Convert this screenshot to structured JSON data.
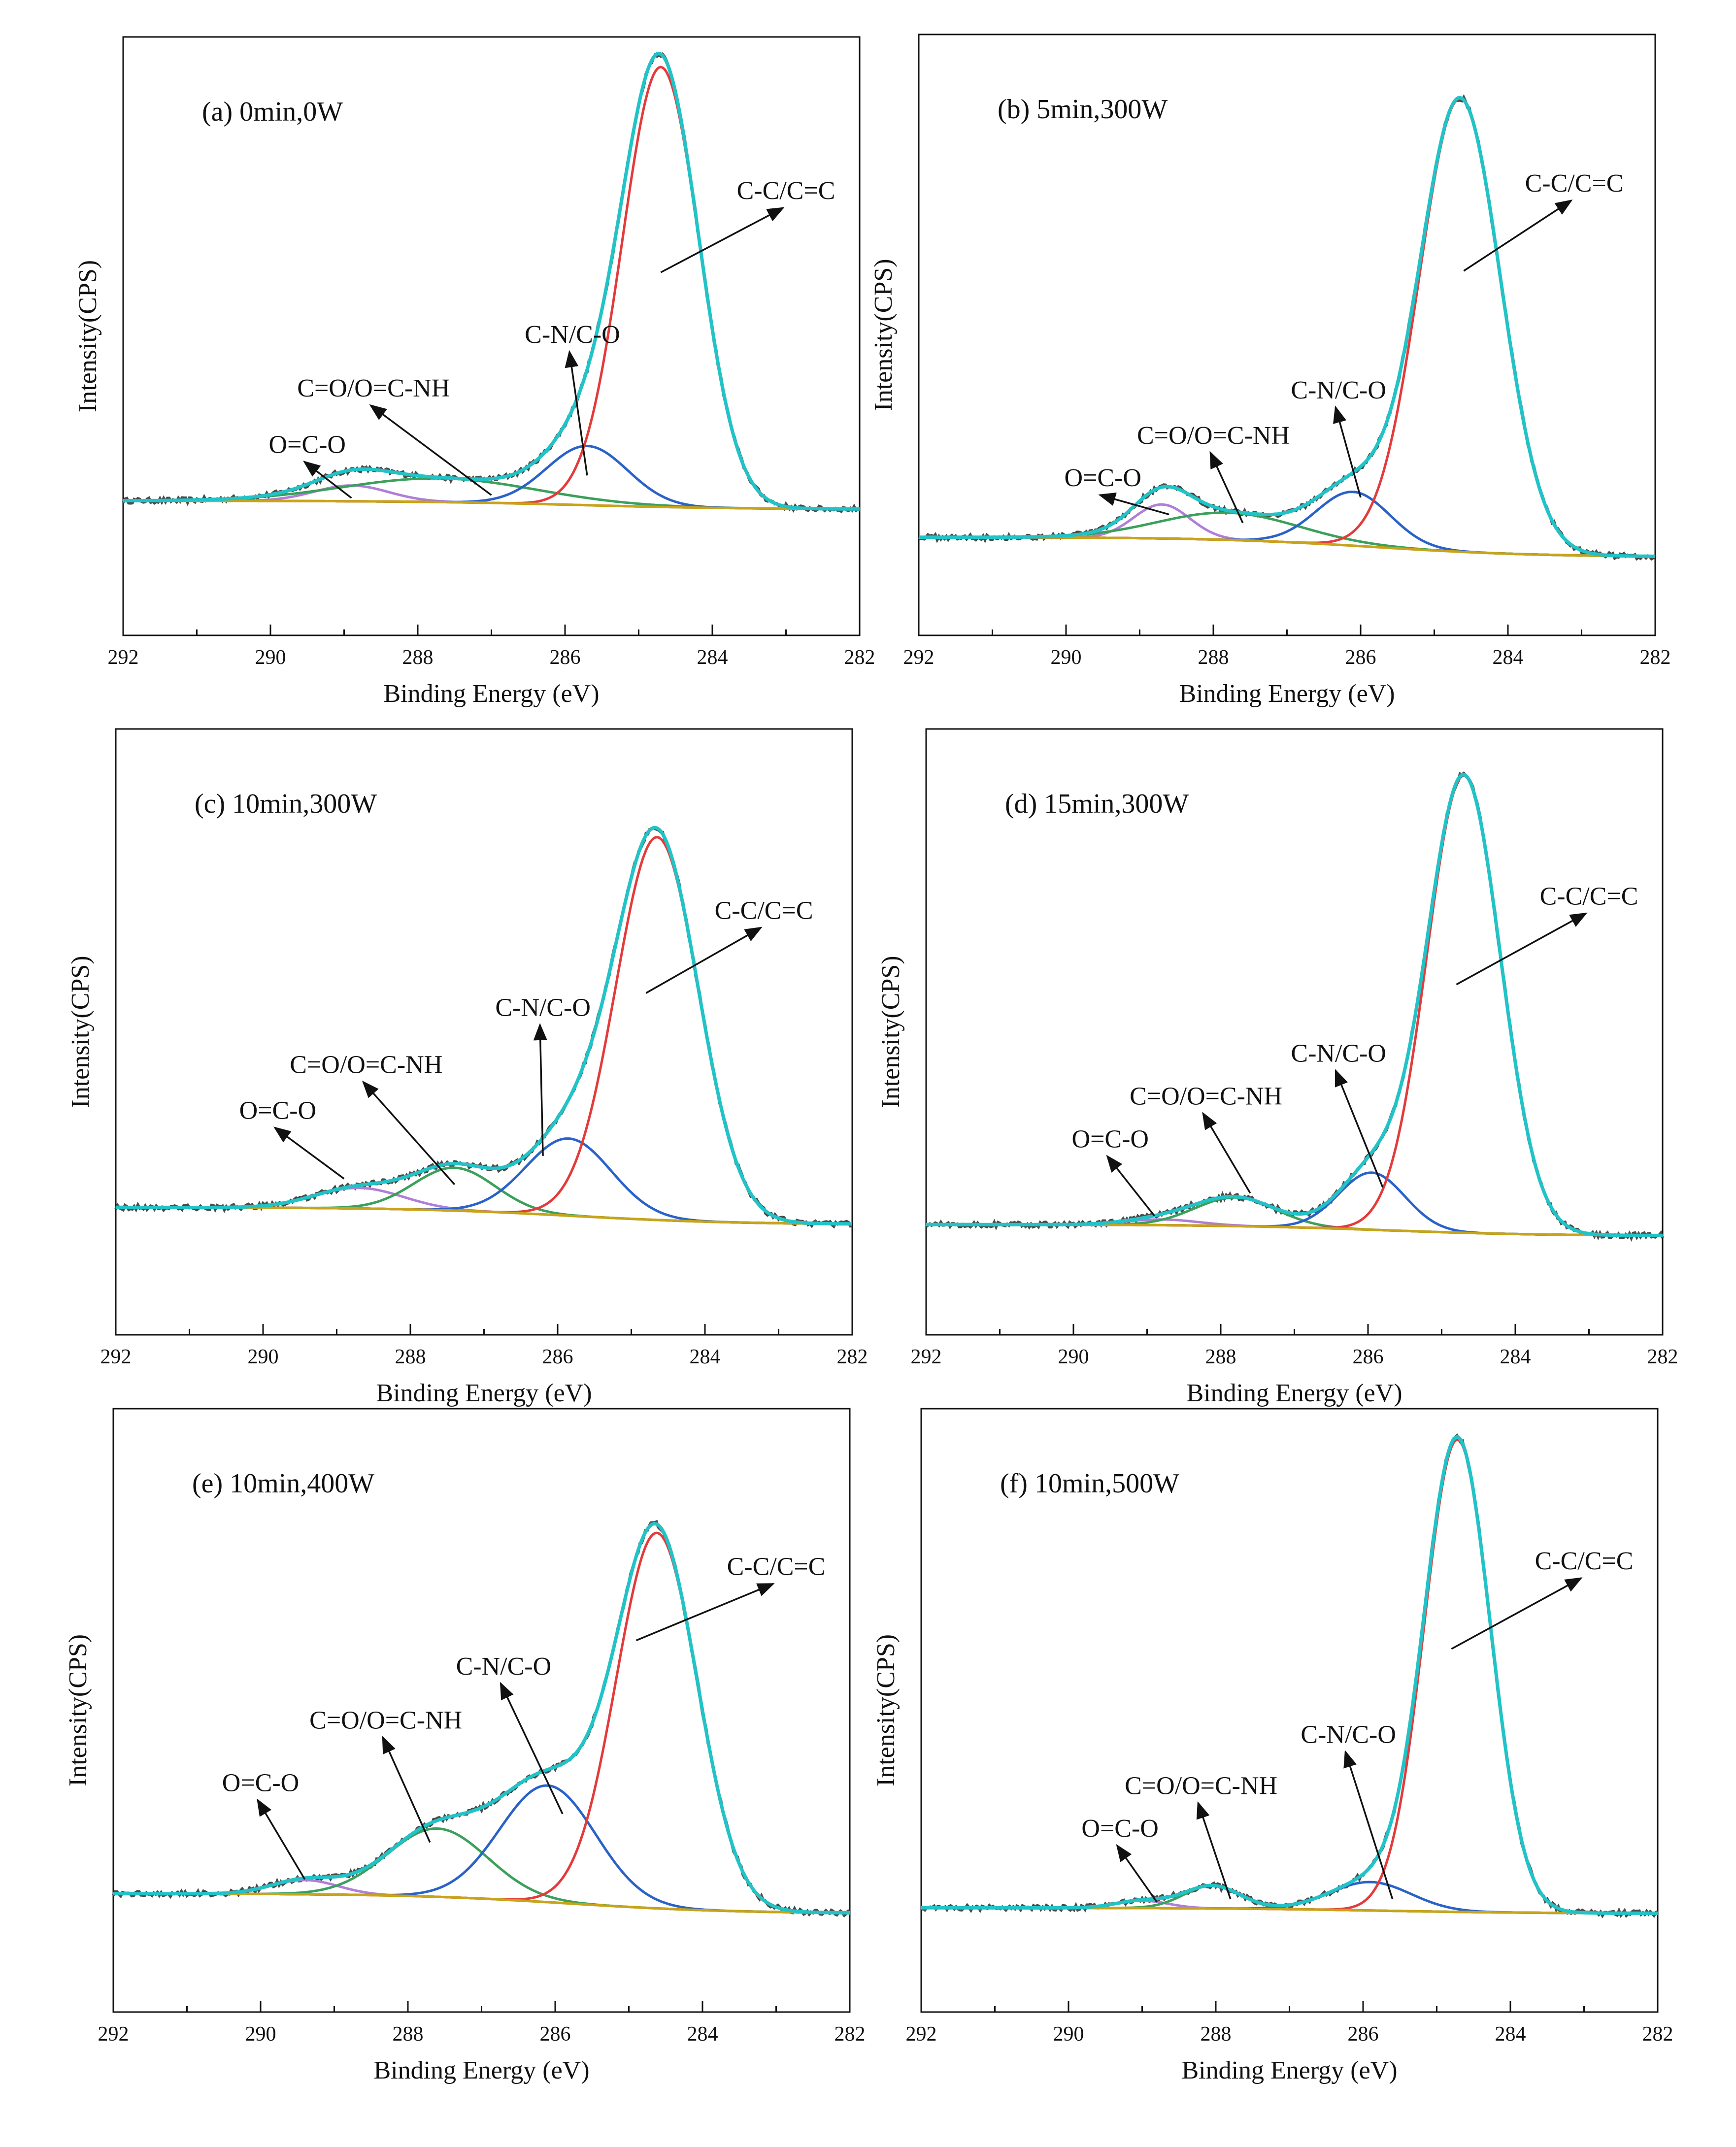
{
  "colors": {
    "raw": "#4a4a4a",
    "envelope": "#22c3c7",
    "cc": "#e33b3b",
    "cn": "#2a62c9",
    "co": "#3aa05a",
    "oco": "#b07ed8",
    "background": "#c8a416"
  },
  "chart_data": [
    {
      "type": "line",
      "title": "(a) 0min,0W",
      "xlabel": "Binding Energy (eV)",
      "ylabel": "Intensity(CPS)",
      "xlim": [
        292,
        282
      ],
      "ylim": [
        0,
        100
      ],
      "xticks": [
        "292",
        "290",
        "288",
        "286",
        "284",
        "282"
      ],
      "baseline": {
        "left": 19.5,
        "right": 18.0
      },
      "series": [
        {
          "name": "C-C/C=C",
          "key": "cc",
          "center": 284.7,
          "amp": 78,
          "width": 0.52
        },
        {
          "name": "C-N/C-O",
          "key": "cn",
          "center": 285.7,
          "amp": 10.5,
          "width": 0.55
        },
        {
          "name": "C=O/O=C-NH",
          "key": "co",
          "center": 287.7,
          "amp": 4.2,
          "width": 1.3
        },
        {
          "name": "O=C-O",
          "key": "oco",
          "center": 288.9,
          "amp": 2.8,
          "width": 0.5
        }
      ],
      "annotations": [
        {
          "text": "C-C/C=C",
          "tx": 283.0,
          "ty": 73,
          "ax": 284.7,
          "ay": 60
        },
        {
          "text": "C-N/C-O",
          "tx": 285.9,
          "ty": 47.5,
          "ax": 285.7,
          "ay": 24
        },
        {
          "text": "C=O/O=C-NH",
          "tx": 288.6,
          "ty": 38,
          "ax": 287.0,
          "ay": 20.5
        },
        {
          "text": "O=C-O",
          "tx": 289.5,
          "ty": 28,
          "ax": 288.9,
          "ay": 20
        }
      ]
    },
    {
      "type": "line",
      "title": "(b) 5min,300W",
      "xlabel": "Binding Energy (eV)",
      "ylabel": "Intensity(CPS)",
      "xlim": [
        292,
        282
      ],
      "ylim": [
        0,
        100
      ],
      "xticks": [
        "292",
        "290",
        "288",
        "286",
        "284",
        "282"
      ],
      "baseline": {
        "left": 13.0,
        "right": 9.5
      },
      "series": [
        {
          "name": "C-C/C=C",
          "key": "cc",
          "center": 284.65,
          "amp": 80,
          "width": 0.55
        },
        {
          "name": "C-N/C-O",
          "key": "cn",
          "center": 286.1,
          "amp": 9.5,
          "width": 0.5
        },
        {
          "name": "C=O/O=C-NH",
          "key": "co",
          "center": 287.8,
          "amp": 4.8,
          "width": 0.95
        },
        {
          "name": "O=C-O",
          "key": "oco",
          "center": 288.7,
          "amp": 6.0,
          "width": 0.38
        }
      ],
      "annotations": [
        {
          "text": "C-C/C=C",
          "tx": 283.1,
          "ty": 74,
          "ax": 284.6,
          "ay": 60
        },
        {
          "text": "C-N/C-O",
          "tx": 286.3,
          "ty": 37.5,
          "ax": 286.0,
          "ay": 20
        },
        {
          "text": "C=O/O=C-NH",
          "tx": 288.0,
          "ty": 29.5,
          "ax": 287.6,
          "ay": 15.5
        },
        {
          "text": "O=C-O",
          "tx": 289.5,
          "ty": 22,
          "ax": 288.6,
          "ay": 17
        }
      ]
    },
    {
      "type": "line",
      "title": "(c) 10min,300W",
      "xlabel": "Binding Energy (eV)",
      "ylabel": "Intensity(CPS)",
      "xlim": [
        292,
        282
      ],
      "ylim": [
        0,
        100
      ],
      "xticks": [
        "292",
        "290",
        "288",
        "286",
        "284",
        "282"
      ],
      "baseline": {
        "left": 18.0,
        "right": 15.0
      },
      "series": [
        {
          "name": "C-C/C=C",
          "key": "cc",
          "center": 284.65,
          "amp": 67,
          "width": 0.56
        },
        {
          "name": "C-N/C-O",
          "key": "cn",
          "center": 285.85,
          "amp": 13.5,
          "width": 0.58
        },
        {
          "name": "C=O/O=C-NH",
          "key": "co",
          "center": 287.4,
          "amp": 7.5,
          "width": 0.55
        },
        {
          "name": "O=C-O",
          "key": "oco",
          "center": 288.7,
          "amp": 3.6,
          "width": 0.6
        }
      ],
      "annotations": [
        {
          "text": "C-C/C=C",
          "tx": 283.2,
          "ty": 68.5,
          "ax": 284.8,
          "ay": 55.5
        },
        {
          "text": "C-N/C-O",
          "tx": 286.2,
          "ty": 51.5,
          "ax": 286.2,
          "ay": 27
        },
        {
          "text": "C=O/O=C-NH",
          "tx": 288.6,
          "ty": 41.5,
          "ax": 287.4,
          "ay": 22
        },
        {
          "text": "O=C-O",
          "tx": 289.8,
          "ty": 33.5,
          "ax": 288.9,
          "ay": 23
        }
      ]
    },
    {
      "type": "line",
      "title": "(d) 15min,300W",
      "xlabel": "Binding Energy (eV)",
      "ylabel": "Intensity(CPS)",
      "xlim": [
        292,
        282
      ],
      "ylim": [
        0,
        100
      ],
      "xticks": [
        "292",
        "290",
        "288",
        "286",
        "284",
        "282"
      ],
      "baseline": {
        "left": 15.0,
        "right": 13.0
      },
      "series": [
        {
          "name": "C-C/C=C",
          "key": "cc",
          "center": 284.7,
          "amp": 80,
          "width": 0.5
        },
        {
          "name": "C-N/C-O",
          "key": "cn",
          "center": 285.95,
          "amp": 10.0,
          "width": 0.45
        },
        {
          "name": "C=O/O=C-NH",
          "key": "co",
          "center": 287.8,
          "amp": 5.0,
          "width": 0.55
        },
        {
          "name": "O=C-O",
          "key": "oco",
          "center": 288.8,
          "amp": 1.0,
          "width": 0.5
        }
      ],
      "annotations": [
        {
          "text": "C-C/C=C",
          "tx": 283.0,
          "ty": 71,
          "ax": 284.8,
          "ay": 57
        },
        {
          "text": "C-N/C-O",
          "tx": 286.4,
          "ty": 43.5,
          "ax": 285.8,
          "ay": 21.5
        },
        {
          "text": "C=O/O=C-NH",
          "tx": 288.2,
          "ty": 36,
          "ax": 287.6,
          "ay": 20.5
        },
        {
          "text": "O=C-O",
          "tx": 289.5,
          "ty": 28.5,
          "ax": 288.9,
          "ay": 16.5
        }
      ]
    },
    {
      "type": "line",
      "title": "(e) 10min,400W",
      "xlabel": "Binding Energy (eV)",
      "ylabel": "Intensity(CPS)",
      "xlim": [
        292,
        282
      ],
      "ylim": [
        0,
        100
      ],
      "xticks": [
        "292",
        "290",
        "288",
        "286",
        "284",
        "282"
      ],
      "baseline": {
        "left": 16.5,
        "right": 13.0
      },
      "series": [
        {
          "name": "C-C/C=C",
          "key": "cc",
          "center": 284.62,
          "amp": 66,
          "width": 0.55
        },
        {
          "name": "C-N/C-O",
          "key": "cn",
          "center": 286.1,
          "amp": 20.5,
          "width": 0.65
        },
        {
          "name": "C=O/O=C-NH",
          "key": "co",
          "center": 287.6,
          "amp": 12.0,
          "width": 0.68
        },
        {
          "name": "O=C-O",
          "key": "oco",
          "center": 289.4,
          "amp": 2.5,
          "width": 0.45
        }
      ],
      "annotations": [
        {
          "text": "C-C/C=C",
          "tx": 283.0,
          "ty": 72.5,
          "ax": 284.9,
          "ay": 61
        },
        {
          "text": "C-N/C-O",
          "tx": 286.7,
          "ty": 55,
          "ax": 285.9,
          "ay": 30.5
        },
        {
          "text": "C=O/O=C-NH",
          "tx": 288.3,
          "ty": 45.5,
          "ax": 287.7,
          "ay": 25.5
        },
        {
          "text": "O=C-O",
          "tx": 290.0,
          "ty": 34.5,
          "ax": 289.4,
          "ay": 19
        }
      ]
    },
    {
      "type": "line",
      "title": "(f) 10min,500W",
      "xlabel": "Binding Energy (eV)",
      "ylabel": "Intensity(CPS)",
      "xlim": [
        292,
        282
      ],
      "ylim": [
        0,
        100
      ],
      "xticks": [
        "292",
        "290",
        "288",
        "286",
        "284",
        "282"
      ],
      "baseline": {
        "left": 14.0,
        "right": 13.0
      },
      "series": [
        {
          "name": "C-C/C=C",
          "key": "cc",
          "center": 284.72,
          "amp": 83,
          "width": 0.45
        },
        {
          "name": "C-N/C-O",
          "key": "cn",
          "center": 285.9,
          "amp": 5.0,
          "width": 0.55
        },
        {
          "name": "C=O/O=C-NH",
          "key": "co",
          "center": 288.05,
          "amp": 4.0,
          "width": 0.38
        },
        {
          "name": "O=C-O",
          "key": "oco",
          "center": 289.0,
          "amp": 1.3,
          "width": 0.35
        }
      ],
      "annotations": [
        {
          "text": "C-C/C=C",
          "tx": 283.0,
          "ty": 73.5,
          "ax": 284.8,
          "ay": 59.5
        },
        {
          "text": "C-N/C-O",
          "tx": 286.2,
          "ty": 43,
          "ax": 285.6,
          "ay": 15.5
        },
        {
          "text": "C=O/O=C-NH",
          "tx": 288.2,
          "ty": 34,
          "ax": 287.8,
          "ay": 15.5
        },
        {
          "text": "O=C-O",
          "tx": 289.3,
          "ty": 26.5,
          "ax": 288.8,
          "ay": 15
        }
      ]
    }
  ]
}
